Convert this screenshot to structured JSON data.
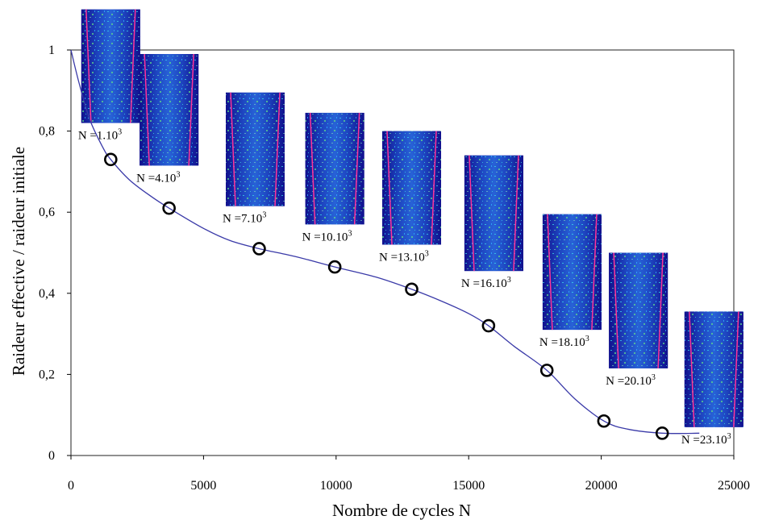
{
  "colors": {
    "curve": "#3a3aa8",
    "marker": "#000000",
    "axis": "#000000",
    "thumb_bg": "#1a1aa0",
    "thumb_edge": "#ff3399"
  },
  "chart_data": {
    "type": "scatter",
    "xlabel": "Nombre de cycles N",
    "ylabel": "Raideur effective / raideur initiale",
    "xlim": [
      0,
      25000
    ],
    "ylim": [
      0,
      1
    ],
    "xticks": [
      0,
      5000,
      10000,
      15000,
      20000,
      25000
    ],
    "xtick_labels": [
      "0",
      "5000",
      "10000",
      "15000",
      "20000",
      "25000"
    ],
    "yticks": [
      0,
      0.2,
      0.4,
      0.6,
      0.8,
      1
    ],
    "ytick_labels": [
      "0",
      "0,2",
      "0,4",
      "0,6",
      "0,8",
      "1"
    ],
    "grid": false,
    "series": [
      {
        "kind": "markers",
        "x": [
          1500,
          3700,
          7100,
          9950,
          12850,
          15750,
          17950,
          20100,
          22300
        ],
        "y": [
          0.73,
          0.61,
          0.51,
          0.465,
          0.41,
          0.32,
          0.21,
          0.085,
          0.055
        ]
      },
      {
        "kind": "fit-line",
        "x": [
          0,
          300,
          700,
          1200,
          1500,
          2200,
          3000,
          3700,
          5000,
          6000,
          7100,
          8500,
          9950,
          11500,
          12850,
          14000,
          15000,
          15750,
          16700,
          17950,
          19000,
          20100,
          21000,
          22300,
          23700
        ],
        "y": [
          1.0,
          0.92,
          0.83,
          0.76,
          0.73,
          0.68,
          0.64,
          0.61,
          0.56,
          0.53,
          0.51,
          0.49,
          0.465,
          0.44,
          0.41,
          0.38,
          0.35,
          0.32,
          0.27,
          0.21,
          0.14,
          0.085,
          0.065,
          0.055,
          0.055
        ]
      }
    ],
    "thumbnails": [
      {
        "label": "N =1.10",
        "exp": "3",
        "x": 1500,
        "y_top": 1.1,
        "y_bottom": 0.82
      },
      {
        "label": "N =4.10",
        "exp": "3",
        "x": 3700,
        "y_top": 0.99,
        "y_bottom": 0.715
      },
      {
        "label": "N =7.10",
        "exp": "3",
        "x": 6950,
        "y_top": 0.895,
        "y_bottom": 0.615
      },
      {
        "label": "N =10.10",
        "exp": "3",
        "x": 9950,
        "y_top": 0.845,
        "y_bottom": 0.57
      },
      {
        "label": "N =13.10",
        "exp": "3",
        "x": 12850,
        "y_top": 0.8,
        "y_bottom": 0.52
      },
      {
        "label": "N =16.10",
        "exp": "3",
        "x": 15950,
        "y_top": 0.74,
        "y_bottom": 0.455
      },
      {
        "label": "N =18.10",
        "exp": "3",
        "x": 18900,
        "y_top": 0.595,
        "y_bottom": 0.31
      },
      {
        "label": "N =20.10",
        "exp": "3",
        "x": 21400,
        "y_top": 0.5,
        "y_bottom": 0.215
      },
      {
        "label": "N =23.10",
        "exp": "3",
        "x": 24250,
        "y_top": 0.355,
        "y_bottom": 0.07
      }
    ]
  }
}
